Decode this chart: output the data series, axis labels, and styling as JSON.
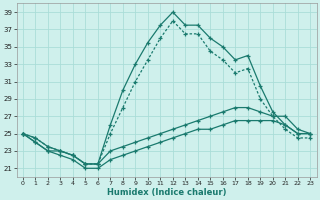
{
  "xlabel": "Humidex (Indice chaleur)",
  "bg_color": "#cff0ec",
  "grid_color": "#aaddd8",
  "line_color": "#1a7a6e",
  "xlim": [
    -0.5,
    23.5
  ],
  "ylim": [
    20,
    40
  ],
  "yticks": [
    21,
    23,
    25,
    27,
    29,
    31,
    33,
    35,
    37,
    39
  ],
  "xticks": [
    0,
    1,
    2,
    3,
    4,
    5,
    6,
    7,
    8,
    9,
    10,
    11,
    12,
    13,
    14,
    15,
    16,
    17,
    18,
    19,
    20,
    21,
    22,
    23
  ],
  "series1": [
    25.0,
    24.5,
    23.5,
    23.0,
    22.5,
    21.5,
    21.5,
    26.0,
    30.0,
    33.0,
    35.5,
    37.5,
    39.0,
    37.5,
    37.5,
    36.0,
    35.0,
    33.5,
    34.0,
    30.5,
    27.5,
    26.0,
    25.0,
    25.0
  ],
  "series2": [
    25.0,
    24.5,
    23.5,
    23.0,
    22.5,
    21.5,
    21.5,
    25.0,
    28.0,
    31.0,
    33.5,
    36.0,
    38.0,
    36.5,
    36.5,
    34.5,
    33.5,
    32.0,
    32.5,
    29.0,
    27.0,
    25.5,
    24.5,
    24.5
  ],
  "series3": [
    25.0,
    24.0,
    23.0,
    23.0,
    22.5,
    21.5,
    21.5,
    23.0,
    23.5,
    24.0,
    24.5,
    25.0,
    25.5,
    26.0,
    26.5,
    27.0,
    27.5,
    28.0,
    28.0,
    27.5,
    27.0,
    27.0,
    25.5,
    25.0
  ],
  "series4": [
    25.0,
    24.0,
    23.0,
    22.5,
    22.0,
    21.0,
    21.0,
    22.0,
    22.5,
    23.0,
    23.5,
    24.0,
    24.5,
    25.0,
    25.5,
    25.5,
    26.0,
    26.5,
    26.5,
    26.5,
    26.5,
    26.0,
    25.0,
    25.0
  ]
}
